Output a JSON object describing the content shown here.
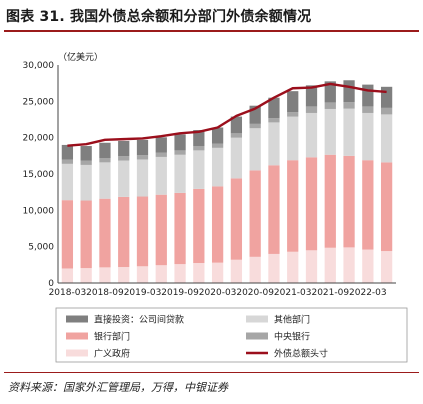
{
  "title": "图表 31. 我国外债总余额和分部门外债余额情况",
  "source": "资料来源：国家外汇管理局，万得，中银证券",
  "chart_data": {
    "type": "bar",
    "stacked": true,
    "unit_label": "（亿美元）",
    "ylim": [
      0,
      30000
    ],
    "yticks": [
      0,
      5000,
      10000,
      15000,
      20000,
      25000,
      30000
    ],
    "ytick_labels": [
      "0",
      "5,000",
      "10,000",
      "15,000",
      "20,000",
      "25,000",
      "30,000"
    ],
    "categories": [
      "2018-03",
      "2018-06",
      "2018-09",
      "2018-12",
      "2019-03",
      "2019-06",
      "2019-09",
      "2019-12",
      "2020-03",
      "2020-06",
      "2020-09",
      "2020-12",
      "2021-03",
      "2021-06",
      "2021-09",
      "2021-12",
      "2022-03",
      "2022-06"
    ],
    "xtick_labels": [
      "2018-03",
      "2018-09",
      "2019-03",
      "2019-09",
      "2020-03",
      "2020-09",
      "2021-03",
      "2021-09",
      "2022-03"
    ],
    "series": [
      {
        "name": "广义政府",
        "color": "#f8dcdc",
        "values": [
          2000,
          2050,
          2150,
          2200,
          2300,
          2450,
          2600,
          2750,
          2800,
          3200,
          3600,
          4000,
          4300,
          4500,
          4850,
          4900,
          4600,
          4400
        ]
      },
      {
        "name": "银行部门",
        "color": "#f0a3a0",
        "values": [
          9400,
          9300,
          9450,
          9650,
          9600,
          9700,
          9800,
          10200,
          10500,
          11200,
          11900,
          12200,
          12600,
          12800,
          12800,
          12600,
          12300,
          12200
        ]
      },
      {
        "name": "其他部门",
        "color": "#d7d7d7",
        "values": [
          5000,
          4900,
          5000,
          5000,
          5100,
          5200,
          5250,
          5300,
          5300,
          5600,
          5800,
          5900,
          6000,
          6100,
          6300,
          6500,
          6500,
          6600
        ]
      },
      {
        "name": "中央银行",
        "color": "#a6a6a6",
        "values": [
          600,
          600,
          600,
          600,
          600,
          600,
          600,
          600,
          600,
          600,
          600,
          600,
          600,
          900,
          900,
          900,
          900,
          900
        ]
      },
      {
        "name": "直接投资：公司间贷款",
        "color": "#7f7f7f",
        "values": [
          2000,
          2000,
          2100,
          2100,
          2100,
          2100,
          2200,
          2200,
          2200,
          2300,
          2500,
          2800,
          2900,
          2900,
          2900,
          3000,
          3000,
          2900
        ]
      }
    ],
    "line": {
      "name": "外债总额头寸",
      "color": "#9b0f1c",
      "values": [
        18900,
        19100,
        19700,
        19800,
        19900,
        20200,
        20600,
        20800,
        21400,
        23000,
        24000,
        25500,
        26800,
        26900,
        27400,
        27000,
        26500,
        26300
      ]
    },
    "legend": [
      {
        "label": "直接投资：公司间贷款",
        "color": "#7f7f7f",
        "kind": "bar"
      },
      {
        "label": "其他部门",
        "color": "#d7d7d7",
        "kind": "bar"
      },
      {
        "label": "银行部门",
        "color": "#f0a3a0",
        "kind": "bar"
      },
      {
        "label": "中央银行",
        "color": "#a6a6a6",
        "kind": "bar"
      },
      {
        "label": "广义政府",
        "color": "#f8dcdc",
        "kind": "bar"
      },
      {
        "label": "外债总额头寸",
        "color": "#9b0f1c",
        "kind": "line"
      }
    ]
  }
}
